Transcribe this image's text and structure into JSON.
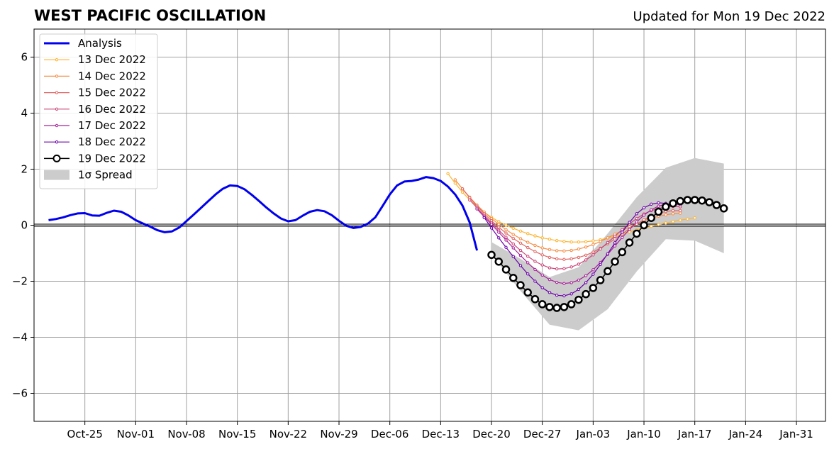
{
  "chart_data": {
    "type": "line",
    "title": "WEST PACIFIC OSCILLATION",
    "subtitle": "Updated for Mon 19 Dec 2022",
    "xlabel": "",
    "ylabel": "",
    "x_range": [
      "2022-10-18",
      "2023-02-04"
    ],
    "ylim": [
      -7,
      7
    ],
    "y_ticks": [
      -6,
      -4,
      -2,
      0,
      2,
      4,
      6
    ],
    "y_tick_labels": [
      "−6",
      "−4",
      "−2",
      "0",
      "2",
      "4",
      "6"
    ],
    "x_ticks": [
      "2022-10-25",
      "2022-11-01",
      "2022-11-08",
      "2022-11-15",
      "2022-11-22",
      "2022-11-29",
      "2022-12-06",
      "2022-12-13",
      "2022-12-20",
      "2022-12-27",
      "2023-01-03",
      "2023-01-10",
      "2023-01-17",
      "2023-01-24",
      "2023-01-31"
    ],
    "x_tick_labels": [
      "Oct-25",
      "Nov-01",
      "Nov-08",
      "Nov-15",
      "Nov-22",
      "Nov-29",
      "Dec-06",
      "Dec-13",
      "Dec-20",
      "Dec-27",
      "Jan-03",
      "Jan-10",
      "Jan-17",
      "Jan-24",
      "Jan-31"
    ],
    "grid": true,
    "legend_position": "top-left",
    "analysis": {
      "name": "Analysis",
      "color": "#0000ee",
      "start": "2022-10-20",
      "values": [
        0.18,
        0.22,
        0.28,
        0.36,
        0.42,
        0.43,
        0.35,
        0.34,
        0.44,
        0.52,
        0.48,
        0.35,
        0.18,
        0.06,
        -0.05,
        -0.18,
        -0.25,
        -0.22,
        -0.08,
        0.15,
        0.38,
        0.62,
        0.86,
        1.1,
        1.3,
        1.42,
        1.4,
        1.28,
        1.08,
        0.86,
        0.63,
        0.42,
        0.24,
        0.14,
        0.18,
        0.34,
        0.48,
        0.54,
        0.5,
        0.36,
        0.16,
        -0.02,
        -0.1,
        -0.06,
        0.06,
        0.28,
        0.68,
        1.1,
        1.42,
        1.56,
        1.58,
        1.63,
        1.72,
        1.68,
        1.58,
        1.38,
        1.1,
        0.7,
        0.1,
        -0.9
      ]
    },
    "forecasts": [
      {
        "name": "13 Dec 2022",
        "color": "#fdb42f",
        "start": "2022-12-14",
        "values": [
          1.84,
          1.5,
          1.18,
          0.9,
          0.66,
          0.46,
          0.28,
          0.13,
          0.0,
          -0.11,
          -0.21,
          -0.3,
          -0.38,
          -0.45,
          -0.5,
          -0.55,
          -0.58,
          -0.6,
          -0.6,
          -0.59,
          -0.56,
          -0.52,
          -0.46,
          -0.39,
          -0.32,
          -0.24,
          -0.17,
          -0.1,
          -0.04,
          0.02,
          0.08,
          0.13,
          0.18,
          0.22,
          0.26
        ]
      },
      {
        "name": "14 Dec 2022",
        "color": "#f68d45",
        "start": "2022-12-15",
        "values": [
          1.62,
          1.3,
          1.0,
          0.72,
          0.47,
          0.24,
          0.03,
          -0.16,
          -0.33,
          -0.48,
          -0.61,
          -0.72,
          -0.81,
          -0.87,
          -0.91,
          -0.92,
          -0.9,
          -0.85,
          -0.78,
          -0.69,
          -0.58,
          -0.45,
          -0.32,
          -0.19,
          -0.06,
          0.06,
          0.16,
          0.25,
          0.32,
          0.37,
          0.41,
          0.43
        ]
      },
      {
        "name": "15 Dec 2022",
        "color": "#e16462",
        "start": "2022-12-16",
        "values": [
          1.3,
          0.98,
          0.68,
          0.41,
          0.16,
          -0.07,
          -0.28,
          -0.47,
          -0.64,
          -0.8,
          -0.94,
          -1.06,
          -1.15,
          -1.2,
          -1.22,
          -1.2,
          -1.15,
          -1.07,
          -0.96,
          -0.82,
          -0.66,
          -0.49,
          -0.31,
          -0.13,
          0.04,
          0.19,
          0.32,
          0.42,
          0.49,
          0.52,
          0.52
        ]
      },
      {
        "name": "16 Dec 2022",
        "color": "#ca4678",
        "start": "2022-12-17",
        "values": [
          0.9,
          0.62,
          0.35,
          0.08,
          -0.18,
          -0.43,
          -0.67,
          -0.9,
          -1.11,
          -1.29,
          -1.42,
          -1.52,
          -1.56,
          -1.55,
          -1.49,
          -1.39,
          -1.24,
          -1.06,
          -0.85,
          -0.62,
          -0.39,
          -0.16,
          0.05,
          0.24,
          0.4,
          0.52,
          0.6,
          0.65,
          0.67,
          0.66
        ]
      },
      {
        "name": "17 Dec 2022",
        "color": "#a62098",
        "start": "2022-12-18",
        "values": [
          0.58,
          0.3,
          0.03,
          -0.25,
          -0.53,
          -0.81,
          -1.08,
          -1.34,
          -1.58,
          -1.78,
          -1.94,
          -2.04,
          -2.08,
          -2.05,
          -1.96,
          -1.8,
          -1.59,
          -1.33,
          -1.04,
          -0.74,
          -0.44,
          -0.15,
          0.12,
          0.36,
          0.55,
          0.68,
          0.75,
          0.76,
          0.73
        ]
      },
      {
        "name": "18 Dec 2022",
        "color": "#6a00a8",
        "start": "2022-12-19",
        "values": [
          0.27,
          -0.1,
          -0.45,
          -0.79,
          -1.12,
          -1.44,
          -1.74,
          -2.0,
          -2.23,
          -2.4,
          -2.5,
          -2.52,
          -2.45,
          -2.29,
          -2.05,
          -1.75,
          -1.4,
          -1.02,
          -0.63,
          -0.25,
          0.1,
          0.41,
          0.62,
          0.75,
          0.8,
          0.78,
          0.72
        ]
      },
      {
        "name": "19 Dec 2022",
        "color": "#000000",
        "start": "2022-12-20",
        "values": [
          -1.06,
          -1.3,
          -1.58,
          -1.88,
          -2.14,
          -2.4,
          -2.64,
          -2.82,
          -2.92,
          -2.95,
          -2.92,
          -2.82,
          -2.66,
          -2.46,
          -2.24,
          -1.96,
          -1.64,
          -1.3,
          -0.96,
          -0.62,
          -0.3,
          0.0,
          0.26,
          0.48,
          0.66,
          0.78,
          0.86,
          0.9,
          0.9,
          0.88,
          0.82,
          0.72,
          0.6
        ]
      }
    ],
    "spread": {
      "name": "1σ Spread",
      "color": "#cccccc",
      "x": [
        "2022-12-20",
        "2022-12-24",
        "2022-12-28",
        "2023-01-01",
        "2023-01-05",
        "2023-01-09",
        "2023-01-13",
        "2023-01-17",
        "2023-01-21"
      ],
      "upper": [
        -0.6,
        -1.2,
        -1.85,
        -1.5,
        -0.3,
        1.0,
        2.05,
        2.4,
        2.2
      ],
      "lower": [
        -1.05,
        -2.35,
        -3.55,
        -3.75,
        -3.0,
        -1.65,
        -0.5,
        -0.55,
        -1.0
      ]
    }
  }
}
